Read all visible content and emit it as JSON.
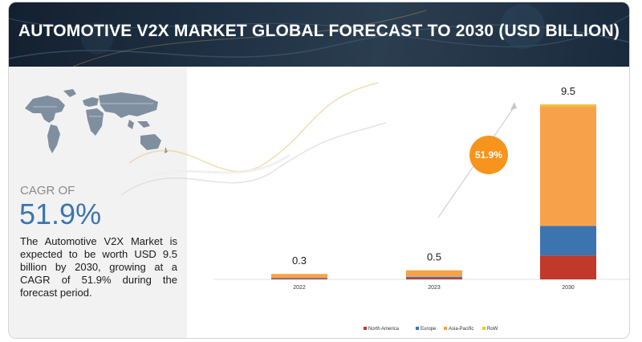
{
  "header": {
    "title": "AUTOMOTIVE V2X MARKET GLOBAL FORECAST TO 2030 (USD BILLION)"
  },
  "summary": {
    "cagr_label": "CAGR OF",
    "cagr_value": "51.9%",
    "description": "The Automotive V2X Market is expected to be worth USD 9.5 billion by 2030, growing at a CAGR of 51.9% during the forecast period."
  },
  "growth_badge": {
    "label": "51.9%",
    "color": "#f7941d"
  },
  "icons": [
    "world-map-icon",
    "growth-arrow-icon"
  ],
  "chart_data": {
    "type": "bar",
    "stacked": true,
    "categories": [
      "2022",
      "2023",
      "2030"
    ],
    "totals": [
      "0.3",
      "0.5",
      "9.5"
    ],
    "series": [
      {
        "name": "North America",
        "color": "#c0392b",
        "values": [
          0.04,
          0.07,
          1.3
        ]
      },
      {
        "name": "Europe",
        "color": "#3c74b0",
        "values": [
          0.04,
          0.07,
          1.6
        ]
      },
      {
        "name": "Asia-Pacific",
        "color": "#f7a24a",
        "values": [
          0.21,
          0.35,
          6.5
        ]
      },
      {
        "name": "RoW",
        "color": "#f2c42e",
        "values": [
          0.01,
          0.01,
          0.1
        ]
      }
    ],
    "ylim": [
      0,
      9.5
    ],
    "grid": false,
    "legend": "bottom"
  }
}
